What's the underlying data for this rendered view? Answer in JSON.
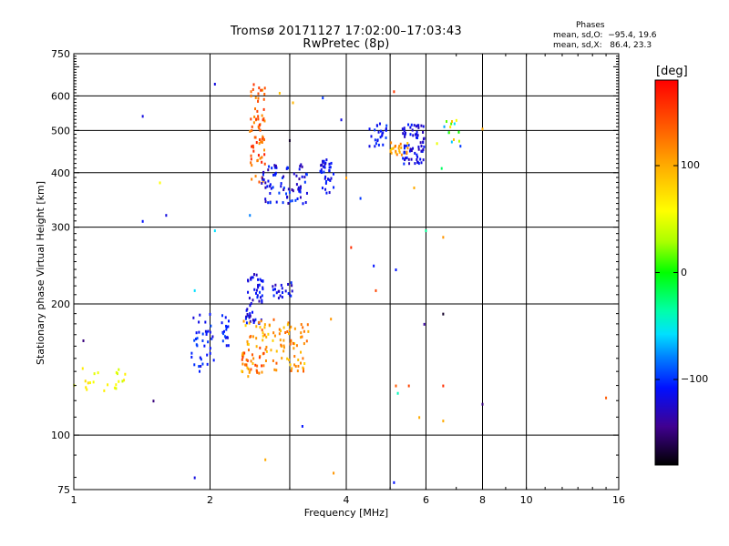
{
  "header": {
    "title_line1": "Tromsø 20171127 17:02:00–17:03:43",
    "title_line2": "RwPretec (8p)",
    "phases_title": "Phases",
    "phase_o": "mean, sd,O:  −95.4, 19.6",
    "phase_x": "mean, sd,X:   86.4, 23.3"
  },
  "colorbar": {
    "unit_label": "[deg]",
    "ticks": [
      {
        "value": 100,
        "label": "100"
      },
      {
        "value": 0,
        "label": "0"
      },
      {
        "value": -100,
        "label": "−100"
      }
    ],
    "range": [
      -180,
      180
    ]
  },
  "chart_data": {
    "type": "scatter",
    "xlabel": "Frequency [MHz]",
    "ylabel": "Stationary phase Virtual Height [km]",
    "x_scale": "log",
    "y_scale": "log",
    "xlim": [
      1,
      16
    ],
    "ylim": [
      75,
      750
    ],
    "x_ticks": [
      {
        "value": 1,
        "label": "1"
      },
      {
        "value": 2,
        "label": "2"
      },
      {
        "value": 4,
        "label": "4"
      },
      {
        "value": 6,
        "label": "6"
      },
      {
        "value": 8,
        "label": "8"
      },
      {
        "value": 10,
        "label": "10"
      },
      {
        "value": 16,
        "label": "16"
      }
    ],
    "y_ticks": [
      {
        "value": 75,
        "label": "75"
      },
      {
        "value": 100,
        "label": "100"
      },
      {
        "value": 200,
        "label": "200"
      },
      {
        "value": 300,
        "label": "300"
      },
      {
        "value": 400,
        "label": "400"
      },
      {
        "value": 500,
        "label": "500"
      },
      {
        "value": 600,
        "label": "600"
      },
      {
        "value": 750,
        "label": "750"
      }
    ],
    "grid_x": [
      2,
      3,
      4,
      5,
      6,
      8,
      10
    ],
    "grid_y": [
      100,
      200,
      300,
      400,
      500,
      600
    ],
    "grid": true,
    "color_scale": "phase in degrees, -180 to 180",
    "clusters": [
      {
        "x": [
          1.0,
          1.3
        ],
        "y": [
          125,
          145
        ],
        "phase": [
          40,
          80
        ],
        "count": 22
      },
      {
        "x": [
          1.82,
          2.05
        ],
        "y": [
          140,
          190
        ],
        "phase": [
          -125,
          -95
        ],
        "count": 38
      },
      {
        "x": [
          2.1,
          2.2
        ],
        "y": [
          160,
          190
        ],
        "phase": [
          -120,
          -95
        ],
        "count": 18
      },
      {
        "x": [
          2.4,
          2.62
        ],
        "y": [
          180,
          240
        ],
        "phase": [
          -135,
          -100
        ],
        "count": 55
      },
      {
        "x": [
          2.75,
          3.05
        ],
        "y": [
          205,
          225
        ],
        "phase": [
          -140,
          -100
        ],
        "count": 22
      },
      {
        "x": [
          2.35,
          3.3
        ],
        "y": [
          140,
          185
        ],
        "phase": [
          80,
          140
        ],
        "count": 110
      },
      {
        "x": [
          2.35,
          2.65
        ],
        "y": [
          135,
          160
        ],
        "phase": [
          100,
          160
        ],
        "count": 25
      },
      {
        "x": [
          2.45,
          2.65
        ],
        "y": [
          380,
          640
        ],
        "phase": [
          110,
          170
        ],
        "count": 70
      },
      {
        "x": [
          2.6,
          3.3
        ],
        "y": [
          340,
          420
        ],
        "phase": [
          -140,
          -95
        ],
        "count": 80
      },
      {
        "x": [
          3.5,
          3.75
        ],
        "y": [
          360,
          430
        ],
        "phase": [
          -130,
          -100
        ],
        "count": 35
      },
      {
        "x": [
          4.5,
          5.0
        ],
        "y": [
          460,
          520
        ],
        "phase": [
          -125,
          -95
        ],
        "count": 25
      },
      {
        "x": [
          5.3,
          5.95
        ],
        "y": [
          420,
          520
        ],
        "phase": [
          -135,
          -100
        ],
        "count": 75
      },
      {
        "x": [
          5.0,
          5.5
        ],
        "y": [
          440,
          470
        ],
        "phase": [
          80,
          130
        ],
        "count": 22
      },
      {
        "x": [
          6.3,
          7.3
        ],
        "y": [
          460,
          530
        ],
        "phase": [
          -120,
          110
        ],
        "count": 15
      }
    ],
    "outliers": [
      {
        "x": 1.05,
        "y": 165,
        "phase": -150
      },
      {
        "x": 1.42,
        "y": 540,
        "phase": -120
      },
      {
        "x": 1.42,
        "y": 310,
        "phase": -110
      },
      {
        "x": 1.6,
        "y": 320,
        "phase": -120
      },
      {
        "x": 1.55,
        "y": 380,
        "phase": 60
      },
      {
        "x": 1.5,
        "y": 120,
        "phase": -150
      },
      {
        "x": 1.85,
        "y": 80,
        "phase": -120
      },
      {
        "x": 1.85,
        "y": 215,
        "phase": -60
      },
      {
        "x": 2.05,
        "y": 640,
        "phase": -120
      },
      {
        "x": 2.05,
        "y": 295,
        "phase": -60
      },
      {
        "x": 2.45,
        "y": 320,
        "phase": -80
      },
      {
        "x": 2.65,
        "y": 88,
        "phase": 100
      },
      {
        "x": 2.85,
        "y": 610,
        "phase": 90
      },
      {
        "x": 3.05,
        "y": 580,
        "phase": 95
      },
      {
        "x": 3.0,
        "y": 475,
        "phase": -170
      },
      {
        "x": 3.2,
        "y": 105,
        "phase": -110
      },
      {
        "x": 3.55,
        "y": 595,
        "phase": -100
      },
      {
        "x": 3.7,
        "y": 185,
        "phase": 110
      },
      {
        "x": 3.75,
        "y": 82,
        "phase": 110
      },
      {
        "x": 3.9,
        "y": 530,
        "phase": -120
      },
      {
        "x": 4.0,
        "y": 390,
        "phase": 110
      },
      {
        "x": 4.1,
        "y": 270,
        "phase": 160
      },
      {
        "x": 4.3,
        "y": 350,
        "phase": -100
      },
      {
        "x": 4.6,
        "y": 245,
        "phase": -110
      },
      {
        "x": 4.65,
        "y": 215,
        "phase": 150
      },
      {
        "x": 5.1,
        "y": 615,
        "phase": 155
      },
      {
        "x": 5.15,
        "y": 240,
        "phase": -110
      },
      {
        "x": 5.1,
        "y": 78,
        "phase": -110
      },
      {
        "x": 5.15,
        "y": 130,
        "phase": 140
      },
      {
        "x": 5.2,
        "y": 125,
        "phase": -40
      },
      {
        "x": 5.5,
        "y": 130,
        "phase": 150
      },
      {
        "x": 5.65,
        "y": 370,
        "phase": 100
      },
      {
        "x": 5.8,
        "y": 110,
        "phase": 100
      },
      {
        "x": 5.95,
        "y": 180,
        "phase": -140
      },
      {
        "x": 6.0,
        "y": 295,
        "phase": -30
      },
      {
        "x": 6.5,
        "y": 410,
        "phase": -20
      },
      {
        "x": 6.55,
        "y": 190,
        "phase": -170
      },
      {
        "x": 6.55,
        "y": 130,
        "phase": 160
      },
      {
        "x": 6.55,
        "y": 108,
        "phase": 100
      },
      {
        "x": 6.55,
        "y": 285,
        "phase": 110
      },
      {
        "x": 8.0,
        "y": 505,
        "phase": 100
      },
      {
        "x": 8.0,
        "y": 118,
        "phase": -150
      },
      {
        "x": 15.0,
        "y": 122,
        "phase": 140
      }
    ]
  }
}
